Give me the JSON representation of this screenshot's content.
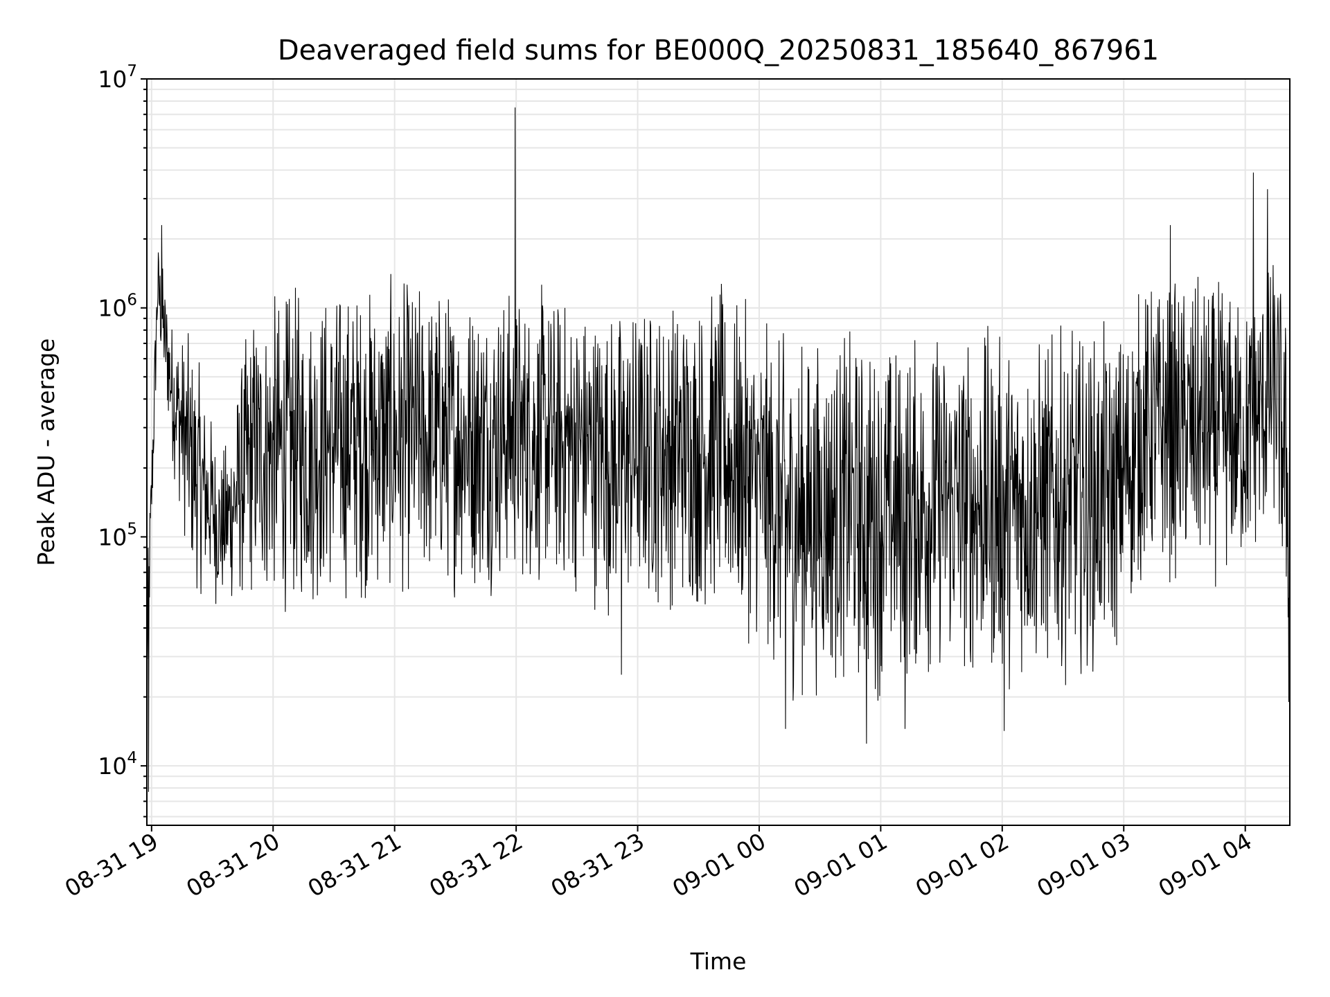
{
  "chart_data": {
    "type": "line",
    "title": "Deaveraged field sums for BE000Q_20250831_185640_867961",
    "xlabel": "Time",
    "ylabel": "Peak ADU - average",
    "y_scale": "log",
    "ylim": [
      5500,
      10000000
    ],
    "xlim": [
      "2025-08-31 18:57:40",
      "2025-09-01 04:22:00"
    ],
    "grid": true,
    "line_color": "#000000",
    "x_ticks": [
      {
        "t": "2025-08-31 19:00",
        "label": "08-31 19"
      },
      {
        "t": "2025-08-31 20:00",
        "label": "08-31 20"
      },
      {
        "t": "2025-08-31 21:00",
        "label": "08-31 21"
      },
      {
        "t": "2025-08-31 22:00",
        "label": "08-31 22"
      },
      {
        "t": "2025-08-31 23:00",
        "label": "08-31 23"
      },
      {
        "t": "2025-09-01 00:00",
        "label": "09-01 00"
      },
      {
        "t": "2025-09-01 01:00",
        "label": "09-01 01"
      },
      {
        "t": "2025-09-01 02:00",
        "label": "09-01 02"
      },
      {
        "t": "2025-09-01 03:00",
        "label": "09-01 03"
      },
      {
        "t": "2025-09-01 04:00",
        "label": "09-01 04"
      }
    ],
    "y_ticks": [
      {
        "value": 10000,
        "base": "10",
        "exp": "4"
      },
      {
        "value": 100000,
        "base": "10",
        "exp": "5"
      },
      {
        "value": 1000000,
        "base": "10",
        "exp": "6"
      },
      {
        "value": 10000000,
        "base": "10",
        "exp": "7"
      }
    ],
    "series": [
      {
        "envelope": [
          {
            "t": "2025-08-31 18:57:40",
            "lo": 15000,
            "hi": 60000
          },
          {
            "t": "2025-08-31 19:03:00",
            "lo": 700000,
            "hi": 2200000
          },
          {
            "t": "2025-08-31 19:10:00",
            "lo": 200000,
            "hi": 1000000
          },
          {
            "t": "2025-08-31 19:20:00",
            "lo": 55000,
            "hi": 800000
          },
          {
            "t": "2025-08-31 19:35:00",
            "lo": 45000,
            "hi": 250000
          },
          {
            "t": "2025-08-31 19:50:00",
            "lo": 45000,
            "hi": 1200000
          },
          {
            "t": "2025-08-31 20:10:00",
            "lo": 42000,
            "hi": 1400000
          },
          {
            "t": "2025-08-31 20:40:00",
            "lo": 48000,
            "hi": 1500000
          },
          {
            "t": "2025-08-31 21:20:00",
            "lo": 50000,
            "hi": 1500000
          },
          {
            "t": "2025-08-31 21:59:00",
            "lo": 55000,
            "hi": 1450000
          },
          {
            "t": "2025-08-31 22:30:00",
            "lo": 50000,
            "hi": 1300000
          },
          {
            "t": "2025-08-31 22:50:00",
            "lo": 40000,
            "hi": 1200000
          },
          {
            "t": "2025-08-31 23:10:00",
            "lo": 45000,
            "hi": 1300000
          },
          {
            "t": "2025-08-31 23:40:00",
            "lo": 40000,
            "hi": 1450000
          },
          {
            "t": "2025-09-01 00:00:00",
            "lo": 30000,
            "hi": 1000000
          },
          {
            "t": "2025-09-01 00:15:00",
            "lo": 17000,
            "hi": 850000
          },
          {
            "t": "2025-09-01 00:40:00",
            "lo": 20000,
            "hi": 900000
          },
          {
            "t": "2025-09-01 01:00:00",
            "lo": 18000,
            "hi": 850000
          },
          {
            "t": "2025-09-01 01:30:00",
            "lo": 22000,
            "hi": 950000
          },
          {
            "t": "2025-09-01 02:00:00",
            "lo": 20000,
            "hi": 900000
          },
          {
            "t": "2025-09-01 02:30:00",
            "lo": 22000,
            "hi": 900000
          },
          {
            "t": "2025-09-01 02:55:00",
            "lo": 25000,
            "hi": 900000
          },
          {
            "t": "2025-09-01 03:10:00",
            "lo": 60000,
            "hi": 1500000
          },
          {
            "t": "2025-09-01 03:40:00",
            "lo": 55000,
            "hi": 1500000
          },
          {
            "t": "2025-09-01 04:00:00",
            "lo": 60000,
            "hi": 1300000
          },
          {
            "t": "2025-09-01 04:15:00",
            "lo": 100000,
            "hi": 2000000
          },
          {
            "t": "2025-09-01 04:22:00",
            "lo": 20000,
            "hi": 1000000
          }
        ],
        "spikes": [
          {
            "t": "2025-08-31 18:58:30",
            "value": 7700
          },
          {
            "t": "2025-08-31 19:05:00",
            "value": 2300000
          },
          {
            "t": "2025-08-31 21:59:30",
            "value": 7500000
          },
          {
            "t": "2025-08-31 22:52:00",
            "value": 25000
          },
          {
            "t": "2025-09-01 00:13:00",
            "value": 14500
          },
          {
            "t": "2025-09-01 00:53:00",
            "value": 12500
          },
          {
            "t": "2025-09-01 01:12:00",
            "value": 14500
          },
          {
            "t": "2025-09-01 02:01:00",
            "value": 14200
          },
          {
            "t": "2025-09-01 03:23:00",
            "value": 2300000
          },
          {
            "t": "2025-09-01 04:04:00",
            "value": 3900000
          },
          {
            "t": "2025-09-01 04:11:00",
            "value": 3300000
          },
          {
            "t": "2025-09-01 04:21:30",
            "value": 19000
          }
        ]
      }
    ]
  }
}
